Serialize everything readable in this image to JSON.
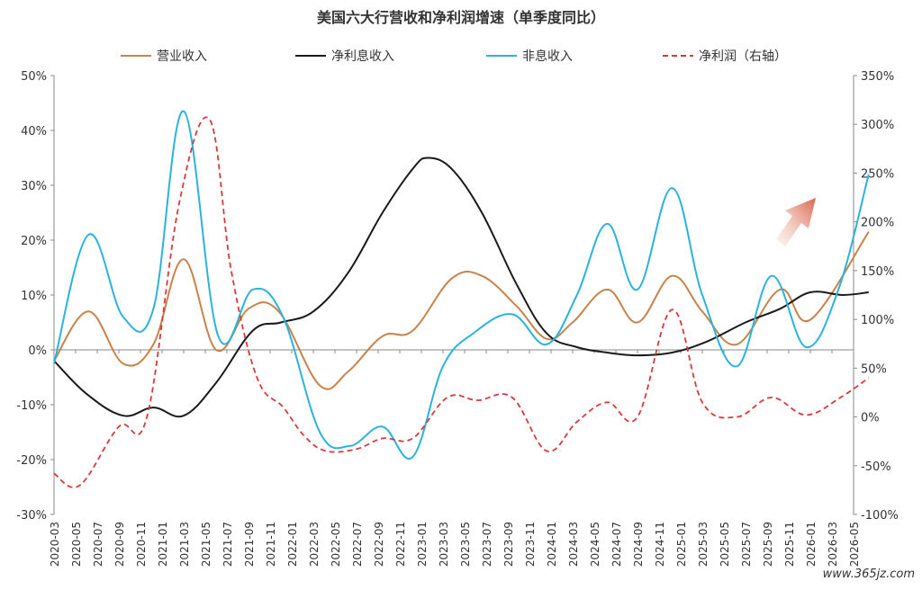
{
  "chart_data": {
    "type": "line",
    "title": "美国六大行营收和净利润增速（单季度同比）",
    "categories": [
      "2020-03",
      "2020-05",
      "2020-07",
      "2020-09",
      "2020-11",
      "2021-01",
      "2021-03",
      "2021-05",
      "2021-07",
      "2021-09",
      "2021-11",
      "2022-01",
      "2022-03",
      "2022-05",
      "2022-07",
      "2022-09",
      "2022-11",
      "2023-01",
      "2023-03",
      "2023-05",
      "2023-07",
      "2023-09",
      "2023-11",
      "2024-01",
      "2024-03",
      "2024-05",
      "2024-07",
      "2024-09",
      "2024-11",
      "2025-01",
      "2025-03",
      "2025-05",
      "2025-07",
      "2025-09",
      "2025-11",
      "2026-01",
      "2026-03",
      "2026-05"
    ],
    "y_left": {
      "ticks": [
        "50%",
        "40%",
        "30%",
        "20%",
        "10%",
        "0%",
        "-10%",
        "-20%",
        "-30%"
      ],
      "ylim": [
        -30,
        50
      ]
    },
    "y_right": {
      "ticks": [
        "350%",
        "300%",
        "250%",
        "200%",
        "150%",
        "100%",
        "50%",
        "0%",
        "-50%",
        "-100%"
      ],
      "ylim": [
        -100,
        350
      ]
    },
    "series": [
      {
        "name": "营业收入",
        "axis": "left",
        "color": "#c8834a",
        "dash": "solid",
        "points": [
          [
            0,
            -2
          ],
          [
            1.6,
            7
          ],
          [
            3.2,
            -2.5
          ],
          [
            4.6,
            1
          ],
          [
            6,
            16.5
          ],
          [
            7.5,
            0
          ],
          [
            9,
            7.5
          ],
          [
            10.4,
            7
          ],
          [
            12.3,
            -6.5
          ],
          [
            13.6,
            -4
          ],
          [
            15.2,
            2.5
          ],
          [
            16.6,
            3.5
          ],
          [
            18.4,
            13
          ],
          [
            19.8,
            13.5
          ],
          [
            21.4,
            8
          ],
          [
            22.8,
            2
          ],
          [
            24,
            5
          ],
          [
            25.6,
            11
          ],
          [
            27,
            5
          ],
          [
            28.6,
            13.5
          ],
          [
            30,
            7
          ],
          [
            31.6,
            1
          ],
          [
            33.6,
            11
          ],
          [
            35,
            5.5
          ],
          [
            37.7,
            21.5
          ]
        ]
      },
      {
        "name": "净利息收入",
        "axis": "left",
        "color": "#1a1a1a",
        "dash": "solid",
        "points": [
          [
            0,
            -2
          ],
          [
            1.5,
            -8
          ],
          [
            3.2,
            -12
          ],
          [
            4.6,
            -10.5
          ],
          [
            6,
            -12
          ],
          [
            7.5,
            -6
          ],
          [
            9.2,
            3.5
          ],
          [
            10.5,
            5
          ],
          [
            12,
            7
          ],
          [
            13.6,
            14
          ],
          [
            15.2,
            25
          ],
          [
            16.6,
            33
          ],
          [
            17.3,
            35
          ],
          [
            18.4,
            33
          ],
          [
            19.8,
            25
          ],
          [
            21.4,
            12
          ],
          [
            22.8,
            3
          ],
          [
            24.2,
            0.5
          ],
          [
            25.6,
            -0.5
          ],
          [
            27,
            -1
          ],
          [
            28.6,
            -0.5
          ],
          [
            30.2,
            1.5
          ],
          [
            32,
            5
          ],
          [
            33.6,
            7.5
          ],
          [
            35,
            10.5
          ],
          [
            36.5,
            10
          ],
          [
            37.7,
            10.5
          ]
        ]
      },
      {
        "name": "非息收入",
        "axis": "left",
        "color": "#2bb3dd",
        "dash": "solid",
        "points": [
          [
            0,
            -2.5
          ],
          [
            1.6,
            21
          ],
          [
            3.2,
            6
          ],
          [
            4.6,
            7.5
          ],
          [
            6,
            43.5
          ],
          [
            7.6,
            2.5
          ],
          [
            9.2,
            11
          ],
          [
            10.6,
            6
          ],
          [
            12.3,
            -15
          ],
          [
            13.7,
            -17.5
          ],
          [
            15.2,
            -14
          ],
          [
            16.6,
            -19.5
          ],
          [
            18,
            -3
          ],
          [
            19.4,
            3
          ],
          [
            21.2,
            6.5
          ],
          [
            22.8,
            1
          ],
          [
            24.2,
            10
          ],
          [
            25.6,
            23
          ],
          [
            27,
            11
          ],
          [
            28.6,
            29.5
          ],
          [
            30,
            10
          ],
          [
            31.6,
            -3
          ],
          [
            33.2,
            13.5
          ],
          [
            34.8,
            0.5
          ],
          [
            36.3,
            11
          ],
          [
            37.7,
            32
          ]
        ]
      },
      {
        "name": "净利润（右轴）",
        "axis": "right",
        "color": "#d63b3b",
        "dash": "dashed",
        "points": [
          [
            0,
            -58
          ],
          [
            1.2,
            -70
          ],
          [
            3,
            -10
          ],
          [
            4.3,
            0
          ],
          [
            5.8,
            220
          ],
          [
            7.2,
            305
          ],
          [
            8.2,
            150
          ],
          [
            9.4,
            40
          ],
          [
            10.6,
            10
          ],
          [
            11.6,
            -20
          ],
          [
            12.6,
            -35
          ],
          [
            14,
            -33
          ],
          [
            15.2,
            -22
          ],
          [
            16.6,
            -22
          ],
          [
            18.2,
            20
          ],
          [
            19.6,
            17
          ],
          [
            21.2,
            20
          ],
          [
            22.8,
            -35
          ],
          [
            24.2,
            -5
          ],
          [
            25.6,
            15
          ],
          [
            27,
            0
          ],
          [
            28.6,
            110
          ],
          [
            30,
            15
          ],
          [
            31.6,
            0
          ],
          [
            33.2,
            20
          ],
          [
            34.8,
            2
          ],
          [
            36.4,
            20
          ],
          [
            37.7,
            40
          ]
        ]
      }
    ]
  },
  "annotation": {
    "name": "up-arrow-icon",
    "color": "#e07a5f"
  },
  "watermark": "www.365jz.com"
}
